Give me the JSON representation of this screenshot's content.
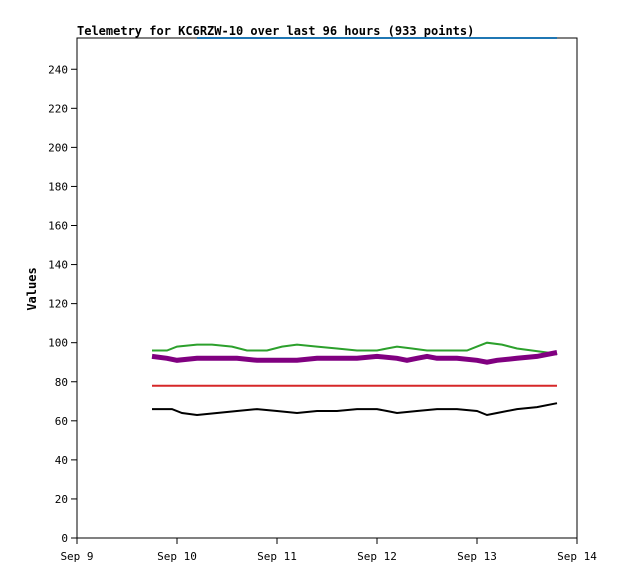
{
  "chart_data": {
    "type": "line",
    "title": "Telemetry for KC6RZW-10 over last 96 hours (933 points)",
    "ylabel": "Values",
    "xlabel": "",
    "xlim": [
      "Sep 9",
      "Sep 14"
    ],
    "ylim": [
      0,
      256
    ],
    "x_ticks": [
      "Sep 9",
      "Sep 10",
      "Sep 11",
      "Sep 12",
      "Sep 13",
      "Sep 14"
    ],
    "y_ticks": [
      0,
      20,
      40,
      60,
      80,
      100,
      120,
      140,
      160,
      180,
      200,
      220,
      240
    ],
    "grid": false,
    "series": [
      {
        "color": "#1f77b4",
        "x": [
          10.2,
          10.8,
          11.8,
          12.8,
          13.8
        ],
        "y": [
          256,
          256,
          256,
          256,
          256
        ]
      },
      {
        "color": "#2ca02c",
        "x": [
          9.75,
          9.9,
          10.0,
          10.2,
          10.35,
          10.55,
          10.7,
          10.9,
          11.05,
          11.2,
          11.4,
          11.6,
          11.8,
          12.0,
          12.1,
          12.2,
          12.35,
          12.5,
          12.7,
          12.9,
          13.0,
          13.1,
          13.25,
          13.4,
          13.55,
          13.7,
          13.8
        ],
        "y": [
          96,
          96,
          98,
          99,
          99,
          98,
          96,
          96,
          98,
          99,
          98,
          97,
          96,
          96,
          97,
          98,
          97,
          96,
          96,
          96,
          98,
          100,
          99,
          97,
          96,
          95,
          94
        ]
      },
      {
        "color": "#800080",
        "x": [
          9.75,
          9.9,
          10.0,
          10.2,
          10.4,
          10.6,
          10.8,
          11.0,
          11.2,
          11.4,
          11.6,
          11.8,
          12.0,
          12.2,
          12.3,
          12.4,
          12.5,
          12.6,
          12.8,
          13.0,
          13.1,
          13.2,
          13.4,
          13.6,
          13.8
        ],
        "y": [
          93,
          92,
          91,
          92,
          92,
          92,
          91,
          91,
          91,
          92,
          92,
          92,
          93,
          92,
          91,
          92,
          93,
          92,
          92,
          91,
          90,
          91,
          92,
          93,
          95
        ]
      },
      {
        "color": "#d62728",
        "x": [
          9.75,
          13.8
        ],
        "y": [
          78,
          78
        ]
      },
      {
        "color": "#000000",
        "x": [
          9.75,
          9.95,
          10.05,
          10.2,
          10.4,
          10.6,
          10.8,
          11.0,
          11.2,
          11.4,
          11.6,
          11.8,
          12.0,
          12.1,
          12.2,
          12.4,
          12.6,
          12.8,
          13.0,
          13.1,
          13.2,
          13.4,
          13.6,
          13.8
        ],
        "y": [
          66,
          66,
          64,
          63,
          64,
          65,
          66,
          65,
          64,
          65,
          65,
          66,
          66,
          65,
          64,
          65,
          66,
          66,
          65,
          63,
          64,
          66,
          67,
          69
        ]
      }
    ]
  }
}
